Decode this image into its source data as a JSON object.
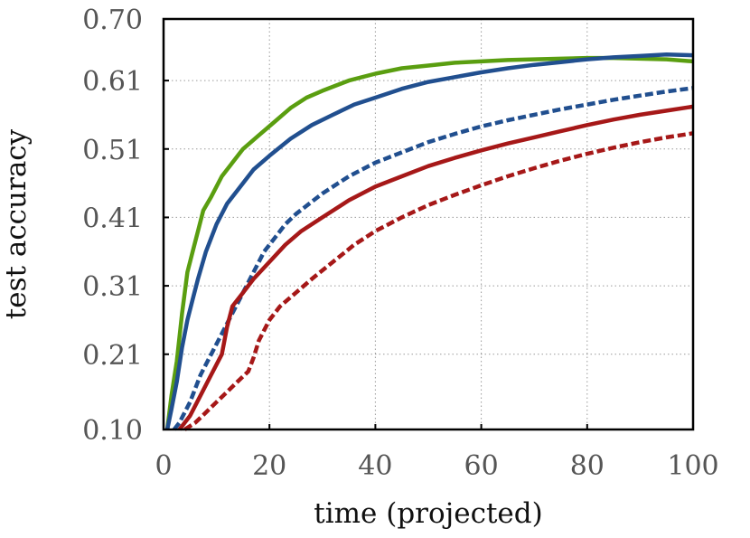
{
  "chart_data": {
    "type": "line",
    "title": "",
    "xlabel": "time (projected)",
    "ylabel": "test accuracy",
    "xlim": [
      0,
      100
    ],
    "ylim": [
      0.1,
      0.7
    ],
    "xticks": [
      0,
      20,
      40,
      60,
      80,
      100
    ],
    "xtick_labels": [
      "0",
      "20",
      "40",
      "60",
      "80",
      "100"
    ],
    "yticks": [
      0.1,
      0.21,
      0.31,
      0.41,
      0.51,
      0.61,
      0.7
    ],
    "ytick_labels": [
      "0.10",
      "0.21",
      "0.31",
      "0.41",
      "0.51",
      "0.61",
      "0.70"
    ],
    "grid": true,
    "legend": "none",
    "series": [
      {
        "color": "#5a9e10",
        "style": "solid",
        "x": [
          0.7,
          1.5,
          2.5,
          3.5,
          4.5,
          5.5,
          6.5,
          7.5,
          9,
          11,
          13,
          15,
          18,
          21,
          24,
          27,
          30,
          35,
          40,
          45,
          50,
          55,
          60,
          65,
          70,
          75,
          80,
          85,
          90,
          95,
          100
        ],
        "y": [
          0.1,
          0.15,
          0.2,
          0.27,
          0.33,
          0.36,
          0.39,
          0.42,
          0.44,
          0.47,
          0.49,
          0.51,
          0.53,
          0.55,
          0.57,
          0.585,
          0.595,
          0.61,
          0.62,
          0.628,
          0.632,
          0.636,
          0.638,
          0.64,
          0.641,
          0.642,
          0.643,
          0.643,
          0.642,
          0.641,
          0.638
        ]
      },
      {
        "color": "#214f8f",
        "style": "solid",
        "x": [
          0.7,
          1.5,
          2.5,
          3.5,
          4.5,
          5.5,
          6.5,
          8,
          10,
          12,
          14,
          17,
          20,
          24,
          28,
          32,
          36,
          40,
          45,
          50,
          55,
          60,
          65,
          70,
          75,
          80,
          85,
          90,
          95,
          100
        ],
        "y": [
          0.1,
          0.13,
          0.17,
          0.22,
          0.26,
          0.29,
          0.32,
          0.36,
          0.4,
          0.43,
          0.45,
          0.48,
          0.5,
          0.525,
          0.545,
          0.56,
          0.575,
          0.585,
          0.598,
          0.608,
          0.615,
          0.622,
          0.628,
          0.633,
          0.637,
          0.641,
          0.644,
          0.646,
          0.648,
          0.647
        ]
      },
      {
        "color": "#214f8f",
        "style": "dashed",
        "x": [
          2,
          3,
          5,
          7,
          9,
          11,
          13,
          15,
          17,
          19,
          21,
          23,
          25,
          30,
          35,
          40,
          45,
          50,
          55,
          60,
          65,
          70,
          75,
          80,
          85,
          90,
          95,
          100
        ],
        "y": [
          0.1,
          0.11,
          0.14,
          0.18,
          0.21,
          0.24,
          0.27,
          0.3,
          0.33,
          0.36,
          0.38,
          0.4,
          0.415,
          0.445,
          0.47,
          0.49,
          0.505,
          0.52,
          0.532,
          0.543,
          0.552,
          0.56,
          0.568,
          0.575,
          0.582,
          0.588,
          0.594,
          0.599
        ]
      },
      {
        "color": "#a61818",
        "style": "solid",
        "x": [
          3,
          5,
          7,
          9,
          11,
          12,
          13,
          15,
          17,
          20,
          23,
          26,
          30,
          35,
          40,
          45,
          50,
          55,
          60,
          65,
          70,
          75,
          80,
          85,
          90,
          95,
          100
        ],
        "y": [
          0.1,
          0.12,
          0.15,
          0.18,
          0.21,
          0.25,
          0.28,
          0.3,
          0.32,
          0.345,
          0.37,
          0.39,
          0.41,
          0.435,
          0.455,
          0.47,
          0.485,
          0.497,
          0.508,
          0.518,
          0.527,
          0.536,
          0.545,
          0.553,
          0.56,
          0.566,
          0.572
        ]
      },
      {
        "color": "#a61818",
        "style": "dashed",
        "x": [
          4,
          6,
          8,
          10,
          12,
          14,
          16,
          17,
          18,
          19,
          20,
          22,
          25,
          28,
          32,
          36,
          40,
          45,
          50,
          55,
          60,
          65,
          70,
          75,
          80,
          85,
          90,
          95,
          100
        ],
        "y": [
          0.1,
          0.11,
          0.125,
          0.14,
          0.155,
          0.17,
          0.185,
          0.205,
          0.23,
          0.245,
          0.26,
          0.28,
          0.3,
          0.32,
          0.345,
          0.37,
          0.39,
          0.41,
          0.428,
          0.443,
          0.457,
          0.47,
          0.482,
          0.493,
          0.503,
          0.512,
          0.52,
          0.527,
          0.533
        ]
      }
    ]
  }
}
